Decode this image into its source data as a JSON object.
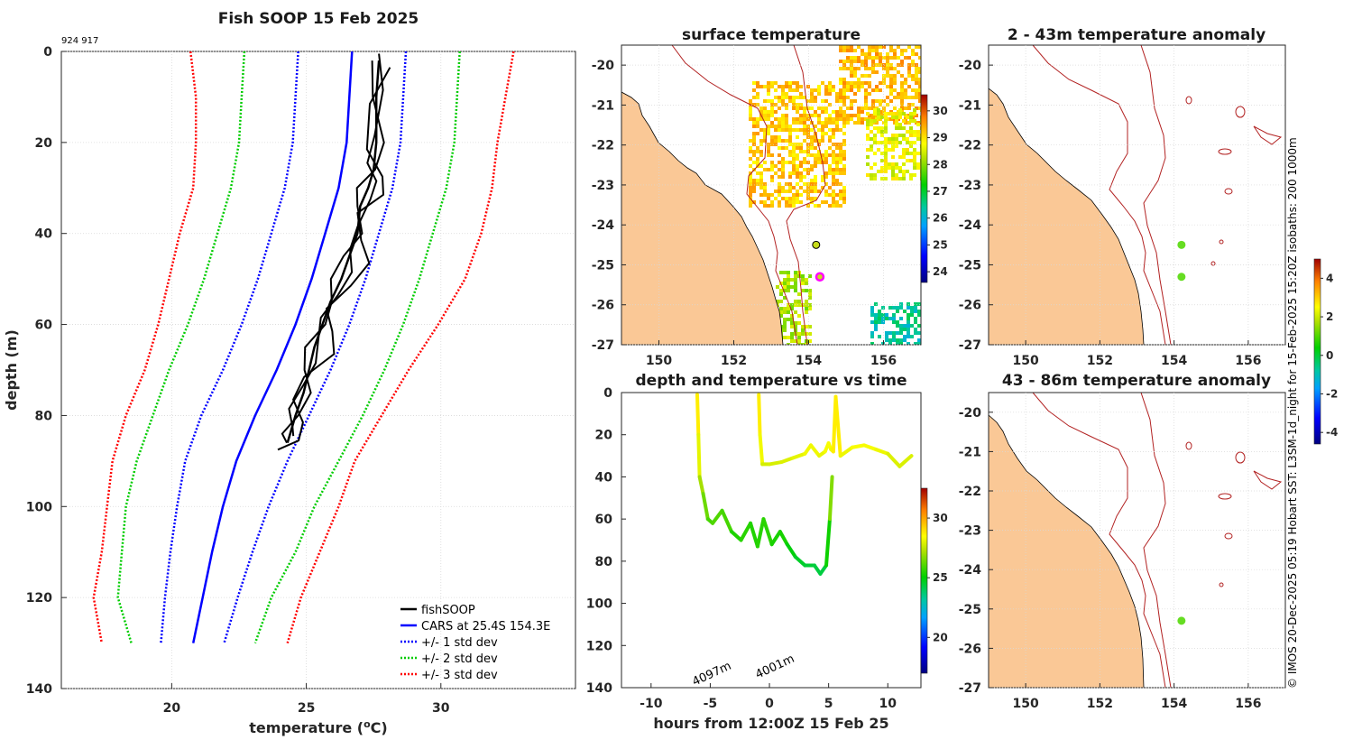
{
  "chart_data": [
    {
      "type": "line",
      "title": "Fish SOOP 15 Feb 2025",
      "id_label": "924 917",
      "xlabel": "temperature (",
      "xlabel_sup": "o",
      "xlabel_end": "C)",
      "ylabel": "depth (m)",
      "xlim": [
        15.9,
        35.0
      ],
      "ylim": [
        140,
        0
      ],
      "xticks": [
        "20",
        "25",
        "30"
      ],
      "yticks": [
        "0",
        "20",
        "40",
        "60",
        "80",
        "100",
        "120",
        "140"
      ],
      "legend": [
        "fishSOOP",
        "CARS at 25.4S 154.3E",
        "+/- 1 std dev",
        "+/- 2 std dev",
        "+/- 3 std dev"
      ],
      "colors": {
        "fish": "#000000",
        "cars": "#0000ff",
        "std1": "#0000ff",
        "std2": "#00cc00",
        "std3": "#ff0000"
      },
      "series": [
        {
          "name": "CARS",
          "depth": [
            0,
            10,
            20,
            30,
            40,
            50,
            60,
            70,
            80,
            90,
            100,
            110,
            120,
            130
          ],
          "temp": [
            26.7,
            26.6,
            26.5,
            26.2,
            25.7,
            25.2,
            24.6,
            23.9,
            23.1,
            22.4,
            21.9,
            21.5,
            21.15,
            20.8
          ]
        },
        {
          "name": "+1sd",
          "depth": [
            0,
            10,
            20,
            30,
            40,
            50,
            60,
            70,
            80,
            90,
            100,
            110,
            120,
            130
          ],
          "temp": [
            28.7,
            28.6,
            28.5,
            28.2,
            27.7,
            27.2,
            26.6,
            25.9,
            25.1,
            24.3,
            23.6,
            23.0,
            22.45,
            21.95
          ]
        },
        {
          "name": "-1sd",
          "depth": [
            0,
            10,
            20,
            30,
            40,
            50,
            60,
            70,
            80,
            90,
            100,
            110,
            120,
            130
          ],
          "temp": [
            24.7,
            24.6,
            24.5,
            24.2,
            23.7,
            23.2,
            22.6,
            21.9,
            21.1,
            20.5,
            20.2,
            19.95,
            19.75,
            19.6
          ]
        },
        {
          "name": "+2sd",
          "depth": [
            0,
            10,
            20,
            30,
            40,
            50,
            60,
            70,
            80,
            90,
            100,
            110,
            120,
            130
          ],
          "temp": [
            30.7,
            30.6,
            30.5,
            30.2,
            29.7,
            29.2,
            28.6,
            27.9,
            27.1,
            26.2,
            25.3,
            24.6,
            23.7,
            23.1
          ]
        },
        {
          "name": "-2sd",
          "depth": [
            0,
            10,
            20,
            30,
            40,
            50,
            60,
            70,
            80,
            90,
            100,
            110,
            120,
            130
          ],
          "temp": [
            22.7,
            22.6,
            22.5,
            22.2,
            21.7,
            21.2,
            20.6,
            19.9,
            19.3,
            18.7,
            18.3,
            18.15,
            18.0,
            18.5
          ]
        },
        {
          "name": "+3sd",
          "depth": [
            0,
            10,
            20,
            30,
            40,
            50,
            60,
            70,
            80,
            90,
            100,
            110,
            120,
            130
          ],
          "temp": [
            32.7,
            32.4,
            32.1,
            31.9,
            31.5,
            30.9,
            29.9,
            28.8,
            27.8,
            26.8,
            26.2,
            25.5,
            24.8,
            24.3
          ]
        },
        {
          "name": "-3sd",
          "depth": [
            0,
            10,
            20,
            30,
            40,
            50,
            60,
            70,
            80,
            90,
            100,
            110,
            120,
            130
          ],
          "temp": [
            20.7,
            20.9,
            20.9,
            20.8,
            20.3,
            19.9,
            19.5,
            19.0,
            18.3,
            17.8,
            17.6,
            17.4,
            17.1,
            17.4
          ]
        },
        {
          "name": "fishSOOP",
          "depth": [
            2,
            10,
            20,
            26,
            30,
            34,
            40,
            45,
            50,
            55,
            60,
            65,
            70,
            75,
            80,
            84,
            86
          ],
          "temp": [
            27.7,
            27.6,
            27.6,
            27.5,
            27.3,
            27.0,
            26.9,
            26.6,
            26.3,
            25.9,
            25.6,
            25.3,
            25.1,
            24.9,
            24.6,
            24.4,
            24.3
          ]
        }
      ]
    },
    {
      "type": "heatmap",
      "title": "surface temperature",
      "xlim": [
        149,
        157
      ],
      "ylim": [
        -27,
        -19.5
      ],
      "xticks": [
        "150",
        "152",
        "154",
        "156"
      ],
      "yticks": [
        "-20",
        "-21",
        "-22",
        "-23",
        "-24",
        "-25",
        "-26",
        "-27"
      ],
      "colorbar_ticks": [
        "24",
        "25",
        "26",
        "27",
        "28",
        "29",
        "30"
      ],
      "stations": [
        {
          "lon": 154.2,
          "lat": -24.5,
          "color": "#c6dc1a"
        },
        {
          "lon": 154.3,
          "lat": -25.3,
          "color": "#ff00ff"
        }
      ]
    },
    {
      "type": "line",
      "title": "depth and temperature vs time",
      "xlabel": "hours from 12:00Z 15 Feb 25",
      "xlim": [
        -12.5,
        12.8
      ],
      "ylim": [
        140,
        0
      ],
      "xticks": [
        "-10",
        "-5",
        "0",
        "5",
        "10"
      ],
      "yticks": [
        "0",
        "20",
        "40",
        "60",
        "80",
        "100",
        "120",
        "140"
      ],
      "colorbar_ticks": [
        "20",
        "25",
        "30"
      ],
      "annotations": [
        "4097m",
        "4001m"
      ],
      "series": [
        {
          "name": "trace 1",
          "hours": [
            -6.1,
            -6.0,
            -5.9,
            -5.6,
            -5.2,
            -4.8,
            -4.0,
            -3.2,
            -2.4,
            -1.6,
            -1.0,
            -0.5,
            0.2,
            0.9,
            1.5,
            2.2,
            3.0,
            3.8,
            4.3,
            4.8,
            5.1,
            5.3
          ],
          "depth": [
            1,
            20,
            40,
            48,
            60,
            62,
            56,
            66,
            70,
            62,
            73,
            60,
            72,
            66,
            72,
            78,
            82,
            82,
            86,
            82,
            60,
            40
          ]
        },
        {
          "name": "trace 2",
          "hours": [
            -0.9,
            -0.8,
            -0.6,
            0.0,
            1.0,
            2.0,
            3.0,
            3.5,
            4.2,
            4.7,
            5.0,
            5.2,
            5.4,
            5.6,
            6.0,
            7.0,
            8.0,
            9.0,
            10.0,
            11.0,
            12.0
          ],
          "depth": [
            1,
            20,
            34,
            34,
            33,
            31,
            29,
            25,
            30,
            28,
            24,
            27,
            28,
            2,
            30,
            26,
            25,
            27,
            29,
            35,
            30
          ]
        }
      ]
    },
    {
      "type": "heatmap",
      "title": "2 - 43m temperature anomaly",
      "xlim": [
        149,
        157
      ],
      "ylim": [
        -27,
        -19.5
      ],
      "xticks": [
        "150",
        "152",
        "154",
        "156"
      ],
      "yticks": [
        "-20",
        "-21",
        "-22",
        "-23",
        "-24",
        "-25",
        "-26",
        "-27"
      ],
      "colorbar_ticks": [
        "-4",
        "-2",
        "0",
        "2",
        "4"
      ],
      "stations": [
        {
          "lon": 154.2,
          "lat": -24.5,
          "color": "#66dd22"
        },
        {
          "lon": 154.2,
          "lat": -25.3,
          "color": "#66dd22"
        }
      ]
    },
    {
      "type": "heatmap",
      "title": "43 - 86m temperature anomaly",
      "xlim": [
        149,
        157
      ],
      "ylim": [
        -27,
        -19.5
      ],
      "xticks": [
        "150",
        "152",
        "154",
        "156"
      ],
      "yticks": [
        "-20",
        "-21",
        "-22",
        "-23",
        "-24",
        "-25",
        "-26",
        "-27"
      ],
      "stations": [
        {
          "lon": 154.2,
          "lat": -25.3,
          "color": "#66dd22"
        }
      ]
    }
  ],
  "side_note": "© IMOS 20-Dec-2025 05:19 Hobart SST: L3SM-1d_night for 15-Feb-2025 15:20Z isobaths: 200  1000m"
}
